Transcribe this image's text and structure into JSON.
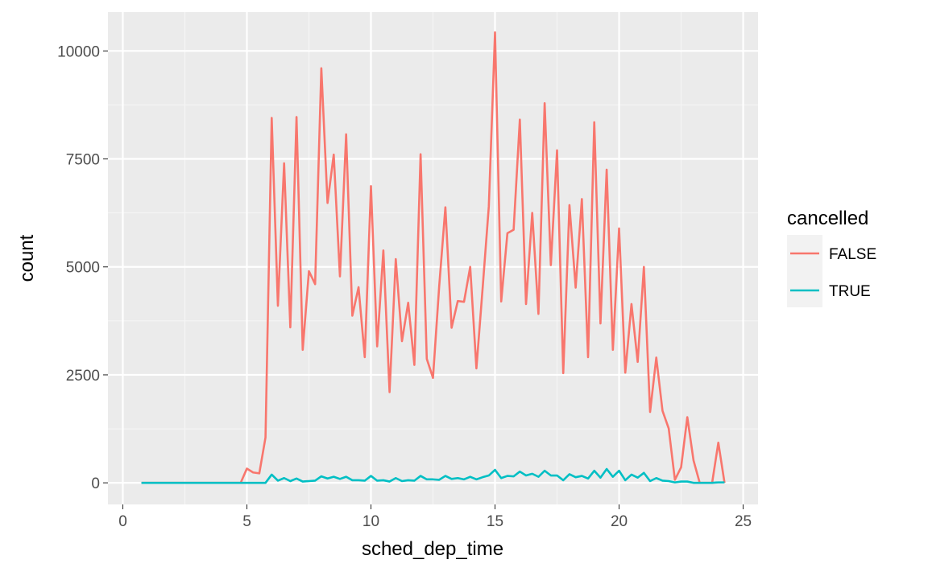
{
  "chart_data": {
    "type": "line",
    "xlabel": "sched_dep_time",
    "ylabel": "count",
    "xlim": [
      -0.6,
      25.6
    ],
    "ylim": [
      -500,
      10900
    ],
    "x_ticks": [
      0,
      5,
      10,
      15,
      20,
      25
    ],
    "y_ticks": [
      0,
      2500,
      5000,
      7500,
      10000
    ],
    "x_tick_labels": [
      "0",
      "5",
      "10",
      "15",
      "20",
      "25"
    ],
    "y_tick_labels": [
      "0",
      "2500",
      "5000",
      "7500",
      "10000"
    ],
    "grid": true,
    "legend": {
      "title": "cancelled",
      "placement": "right",
      "entries": [
        "FALSE",
        "TRUE"
      ]
    },
    "series": [
      {
        "name": "FALSE",
        "color": "#F8766D",
        "x": [
          0.75,
          1.0,
          1.5,
          2.0,
          2.5,
          3.0,
          3.5,
          4.0,
          4.5,
          4.75,
          5.0,
          5.25,
          5.5,
          5.75,
          6.0,
          6.25,
          6.5,
          6.75,
          7.0,
          7.25,
          7.5,
          7.75,
          8.0,
          8.25,
          8.5,
          8.75,
          9.0,
          9.25,
          9.5,
          9.75,
          10.0,
          10.25,
          10.5,
          10.75,
          11.0,
          11.25,
          11.5,
          11.75,
          12.0,
          12.25,
          12.5,
          12.75,
          13.0,
          13.25,
          13.5,
          13.75,
          14.0,
          14.25,
          14.5,
          14.75,
          15.0,
          15.25,
          15.5,
          15.75,
          16.0,
          16.25,
          16.5,
          16.75,
          17.0,
          17.25,
          17.5,
          17.75,
          18.0,
          18.25,
          18.5,
          18.75,
          19.0,
          19.25,
          19.5,
          19.75,
          20.0,
          20.25,
          20.5,
          20.75,
          21.0,
          21.25,
          21.5,
          21.75,
          22.0,
          22.25,
          22.5,
          22.75,
          23.0,
          23.25,
          23.75,
          24.0,
          24.25
        ],
        "y": [
          0,
          0,
          0,
          0,
          0,
          0,
          0,
          0,
          0,
          0,
          330,
          240,
          220,
          1050,
          8450,
          4100,
          7400,
          3600,
          8470,
          3080,
          4900,
          4600,
          9600,
          6480,
          7600,
          4780,
          8070,
          3870,
          4530,
          2910,
          6870,
          3160,
          5380,
          2100,
          5180,
          3280,
          4170,
          2730,
          7610,
          2870,
          2430,
          4550,
          6380,
          3590,
          4210,
          4190,
          5000,
          2650,
          4500,
          6400,
          10430,
          4200,
          5780,
          5860,
          8410,
          4140,
          6250,
          3910,
          8790,
          5040,
          7700,
          2540,
          6430,
          4520,
          6570,
          2910,
          8350,
          3690,
          7250,
          3080,
          5890,
          2550,
          4140,
          2800,
          5000,
          1640,
          2900,
          1670,
          1260,
          70,
          360,
          1520,
          520,
          0,
          0,
          930,
          0
        ]
      },
      {
        "name": "TRUE",
        "color": "#00BFC4",
        "x": [
          0.75,
          1.0,
          1.5,
          2.0,
          2.5,
          3.0,
          3.5,
          4.0,
          4.5,
          5.0,
          5.5,
          5.75,
          6.0,
          6.25,
          6.5,
          6.75,
          7.0,
          7.25,
          7.5,
          7.75,
          8.0,
          8.25,
          8.5,
          8.75,
          9.0,
          9.25,
          9.5,
          9.75,
          10.0,
          10.25,
          10.5,
          10.75,
          11.0,
          11.25,
          11.5,
          11.75,
          12.0,
          12.25,
          12.5,
          12.75,
          13.0,
          13.25,
          13.5,
          13.75,
          14.0,
          14.25,
          14.5,
          14.75,
          15.0,
          15.25,
          15.5,
          15.75,
          16.0,
          16.25,
          16.5,
          16.75,
          17.0,
          17.25,
          17.5,
          17.75,
          18.0,
          18.25,
          18.5,
          18.75,
          19.0,
          19.25,
          19.5,
          19.75,
          20.0,
          20.25,
          20.5,
          20.75,
          21.0,
          21.25,
          21.5,
          21.75,
          22.0,
          22.25,
          22.5,
          22.75,
          23.0,
          23.25,
          23.75,
          24.0,
          24.25
        ],
        "y": [
          0,
          0,
          0,
          0,
          0,
          0,
          0,
          0,
          0,
          0,
          0,
          0,
          190,
          50,
          110,
          40,
          100,
          30,
          40,
          50,
          150,
          100,
          140,
          90,
          140,
          60,
          60,
          50,
          160,
          50,
          60,
          30,
          110,
          40,
          60,
          50,
          160,
          80,
          80,
          70,
          160,
          90,
          110,
          80,
          140,
          80,
          130,
          170,
          300,
          110,
          160,
          150,
          260,
          170,
          210,
          140,
          280,
          170,
          170,
          60,
          200,
          130,
          160,
          100,
          280,
          120,
          320,
          140,
          280,
          60,
          190,
          120,
          230,
          40,
          110,
          50,
          40,
          10,
          30,
          30,
          0,
          0,
          0,
          10,
          10
        ]
      }
    ]
  }
}
